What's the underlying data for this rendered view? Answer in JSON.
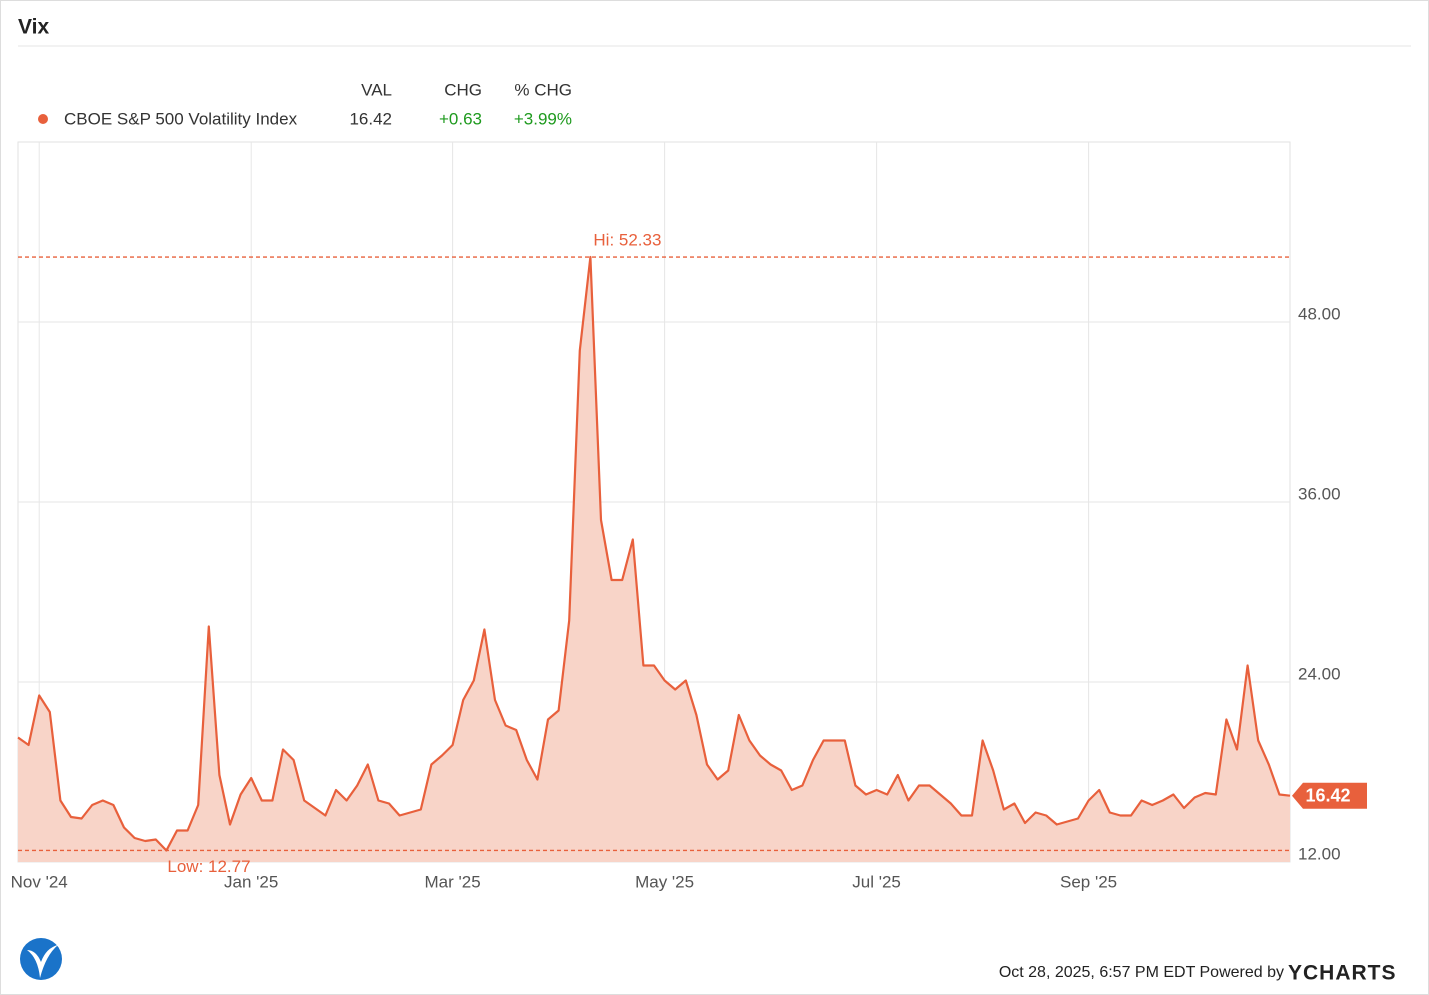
{
  "chart_data": {
    "type": "area",
    "title": "Vix",
    "quote_headers": [
      "VAL",
      "CHG",
      "% CHG"
    ],
    "change": "+0.63",
    "pct_change": "+3.99%",
    "categories": [
      null,
      null,
      "Nov '24",
      null,
      null,
      null,
      null,
      null,
      null,
      null,
      null,
      null,
      null,
      null,
      null,
      null,
      null,
      null,
      null,
      null,
      null,
      null,
      "Jan '25",
      null,
      null,
      null,
      null,
      null,
      null,
      null,
      null,
      null,
      null,
      null,
      null,
      null,
      null,
      null,
      null,
      null,
      null,
      "Mar '25",
      null,
      null,
      null,
      null,
      null,
      null,
      null,
      null,
      null,
      null,
      null,
      null,
      null,
      null,
      null,
      null,
      null,
      null,
      null,
      "May '25",
      null,
      null,
      null,
      null,
      null,
      null,
      null,
      null,
      null,
      null,
      null,
      null,
      null,
      null,
      null,
      null,
      null,
      null,
      null,
      "Jul '25",
      null,
      null,
      null,
      null,
      null,
      null,
      null,
      null,
      null,
      null,
      null,
      null,
      null,
      null,
      null,
      null,
      null,
      null,
      null,
      "Sep '25",
      null,
      null,
      null,
      null,
      null,
      null,
      null,
      null,
      null,
      null,
      null,
      null,
      null,
      null,
      null,
      null,
      null,
      null,
      null
    ],
    "series": [
      {
        "name": "CBOE S&P 500 Volatility Index",
        "color": "#e8603c",
        "fill": "#f8d4c8",
        "values": [
          20.3,
          19.8,
          23.1,
          22.0,
          16.1,
          15.0,
          14.9,
          15.8,
          16.1,
          15.8,
          14.3,
          13.6,
          13.4,
          13.5,
          12.77,
          14.1,
          14.1,
          15.8,
          27.7,
          17.8,
          14.5,
          16.5,
          17.6,
          16.1,
          16.1,
          19.5,
          18.8,
          16.1,
          15.6,
          15.1,
          16.8,
          16.1,
          17.1,
          18.5,
          16.1,
          15.9,
          15.1,
          15.3,
          15.5,
          18.5,
          19.1,
          19.8,
          22.8,
          24.1,
          27.5,
          22.8,
          21.1,
          20.8,
          18.8,
          17.5,
          21.5,
          22.1,
          28.1,
          46.1,
          52.33,
          34.8,
          30.8,
          30.8,
          33.5,
          25.1,
          25.1,
          24.1,
          23.5,
          24.1,
          21.8,
          18.5,
          17.5,
          18.1,
          21.8,
          20.1,
          19.1,
          18.5,
          18.1,
          16.8,
          17.1,
          18.8,
          20.1,
          20.1,
          20.1,
          17.1,
          16.5,
          16.8,
          16.5,
          17.8,
          16.1,
          17.1,
          17.1,
          16.5,
          15.9,
          15.1,
          15.1,
          20.1,
          18.1,
          15.5,
          15.9,
          14.6,
          15.3,
          15.1,
          14.5,
          14.7,
          14.9,
          16.1,
          16.8,
          15.3,
          15.1,
          15.1,
          16.1,
          15.8,
          16.1,
          16.5,
          15.6,
          16.3,
          16.6,
          16.5,
          21.5,
          19.5,
          25.1,
          20.1,
          18.5,
          16.5,
          16.42
        ]
      }
    ],
    "ylim": [
      12,
      60
    ],
    "yticks": [
      {
        "value": 12,
        "label": "12.00"
      },
      {
        "value": 24,
        "label": "24.00"
      },
      {
        "value": 36,
        "label": "36.00"
      },
      {
        "value": 48,
        "label": "48.00"
      }
    ],
    "grid": true,
    "annotations": {
      "high": "Hi: 52.33",
      "low": "Low: 12.77"
    },
    "footer": "Oct 28, 2025, 6:57 PM EDT Powered by",
    "brand": "YCHARTS"
  }
}
